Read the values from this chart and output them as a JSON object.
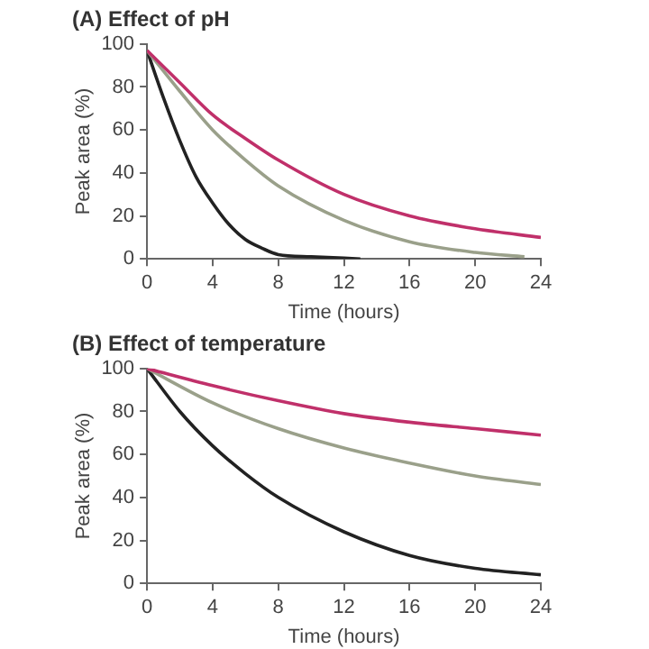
{
  "chart_data": [
    {
      "type": "line",
      "title": "(A) Effect of pH",
      "xlabel": "Time (hours)",
      "ylabel": "Peak area (%)",
      "xlim": [
        0,
        24
      ],
      "xticks": [
        0,
        4,
        8,
        12,
        16,
        20,
        24
      ],
      "ylim": [
        0,
        100
      ],
      "yticks": [
        0,
        20,
        40,
        60,
        80,
        100
      ],
      "grid": false,
      "legend": false,
      "series": [
        {
          "color": "#c0306a",
          "x": [
            0,
            2,
            4,
            6,
            8,
            12,
            16,
            20,
            24
          ],
          "values": [
            97,
            82,
            67,
            56,
            46,
            30,
            20,
            14,
            10
          ]
        },
        {
          "color": "#9aa08a",
          "x": [
            0,
            2,
            4,
            6,
            8,
            12,
            16,
            20,
            23
          ],
          "values": [
            97,
            78,
            60,
            46,
            34,
            18,
            8,
            3,
            1
          ]
        },
        {
          "color": "#222222",
          "x": [
            0,
            1,
            2,
            3,
            4,
            5,
            6,
            7,
            8,
            10,
            13
          ],
          "values": [
            97,
            75,
            55,
            38,
            26,
            16,
            9,
            5,
            2,
            1,
            0
          ]
        }
      ]
    },
    {
      "type": "line",
      "title": "(B) Effect of temperature",
      "xlabel": "Time (hours)",
      "ylabel": "Peak area (%)",
      "xlim": [
        0,
        24
      ],
      "xticks": [
        0,
        4,
        8,
        12,
        16,
        20,
        24
      ],
      "ylim": [
        0,
        100
      ],
      "yticks": [
        0,
        20,
        40,
        60,
        80,
        100
      ],
      "grid": false,
      "legend": false,
      "series": [
        {
          "color": "#c0306a",
          "x": [
            0,
            4,
            8,
            12,
            16,
            20,
            24
          ],
          "values": [
            100,
            92,
            85,
            79,
            75,
            72,
            69
          ]
        },
        {
          "color": "#9aa08a",
          "x": [
            0,
            4,
            8,
            12,
            16,
            20,
            24
          ],
          "values": [
            100,
            84,
            72,
            63,
            56,
            50,
            46
          ]
        },
        {
          "color": "#222222",
          "x": [
            0,
            2,
            4,
            6,
            8,
            12,
            16,
            20,
            24
          ],
          "values": [
            100,
            80,
            64,
            51,
            40,
            24,
            13,
            7,
            4
          ]
        }
      ]
    }
  ]
}
